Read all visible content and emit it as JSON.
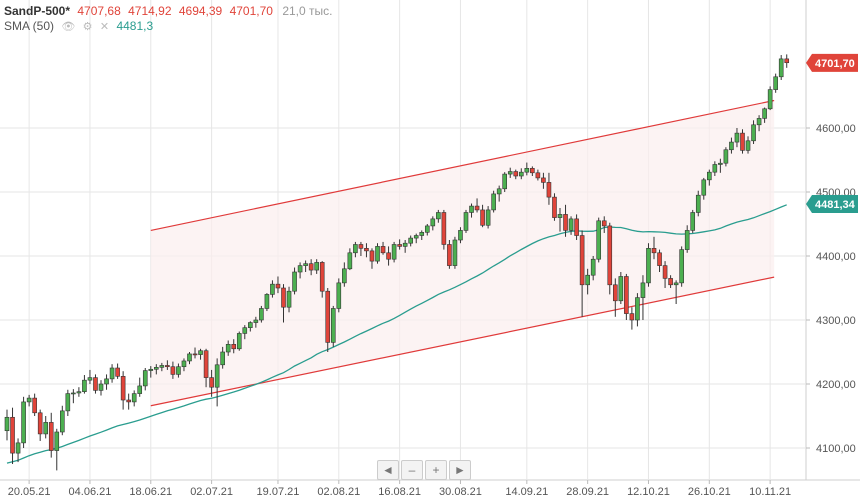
{
  "legend": {
    "symbol": "SandP-500*",
    "open": "4707,68",
    "high": "4714,92",
    "low": "4694,39",
    "close": "4701,70",
    "volume": "21,0 тыс.",
    "sma_label": "SMA (50)",
    "sma_value": "4481,3"
  },
  "nav": {
    "left": "◄",
    "minus": "–",
    "plus": "+",
    "right": "►"
  },
  "colors": {
    "up": "#4caf50",
    "down": "#e0443a",
    "channel": "#e03a3a",
    "sma": "#2a9d8f",
    "grid": "#e6e6e6"
  },
  "chart_data": {
    "type": "candlestick",
    "ylim": [
      4050,
      4800
    ],
    "yticks": [
      "4100,00",
      "4200,00",
      "4300,00",
      "4400,00",
      "4500,00",
      "4600,00"
    ],
    "xticks": [
      "20.05.21",
      "04.06.21",
      "18.06.21",
      "02.07.21",
      "19.07.21",
      "02.08.21",
      "16.08.21",
      "30.08.21",
      "14.09.21",
      "28.09.21",
      "12.10.21",
      "26.10.21",
      "10.11.21"
    ],
    "last_price": "4701,70",
    "sma_badge": "4481,34",
    "channel": {
      "start": "18.06.21",
      "end": "10.11.21",
      "upper_start": 4440,
      "upper_end": 4643,
      "lower_start": 4166,
      "lower_end": 4367
    },
    "candles": [
      [
        4127,
        4160,
        4112,
        4148
      ],
      [
        4148,
        4163,
        4075,
        4092
      ],
      [
        4092,
        4115,
        4078,
        4108
      ],
      [
        4108,
        4180,
        4100,
        4172
      ],
      [
        4172,
        4183,
        4165,
        4178
      ],
      [
        4178,
        4185,
        4150,
        4155
      ],
      [
        4155,
        4160,
        4111,
        4122
      ],
      [
        4122,
        4150,
        4115,
        4140
      ],
      [
        4140,
        4155,
        4085,
        4096
      ],
      [
        4096,
        4130,
        4065,
        4125
      ],
      [
        4125,
        4166,
        4120,
        4158
      ],
      [
        4158,
        4191,
        4150,
        4185
      ],
      [
        4185,
        4192,
        4170,
        4186
      ],
      [
        4186,
        4195,
        4180,
        4188
      ],
      [
        4188,
        4214,
        4185,
        4206
      ],
      [
        4206,
        4222,
        4200,
        4210
      ],
      [
        4210,
        4215,
        4185,
        4190
      ],
      [
        4190,
        4206,
        4182,
        4200
      ],
      [
        4200,
        4215,
        4191,
        4208
      ],
      [
        4208,
        4231,
        4202,
        4225
      ],
      [
        4225,
        4232,
        4208,
        4212
      ],
      [
        4212,
        4220,
        4160,
        4175
      ],
      [
        4175,
        4185,
        4160,
        4172
      ],
      [
        4172,
        4190,
        4165,
        4185
      ],
      [
        4185,
        4210,
        4180,
        4197
      ],
      [
        4197,
        4225,
        4190,
        4221
      ],
      [
        4221,
        4228,
        4210,
        4223
      ],
      [
        4223,
        4231,
        4215,
        4226
      ],
      [
        4226,
        4233,
        4220,
        4229
      ],
      [
        4229,
        4237,
        4222,
        4227
      ],
      [
        4227,
        4235,
        4208,
        4215
      ],
      [
        4215,
        4232,
        4210,
        4227
      ],
      [
        4227,
        4240,
        4220,
        4236
      ],
      [
        4236,
        4250,
        4231,
        4247
      ],
      [
        4247,
        4257,
        4240,
        4246
      ],
      [
        4246,
        4255,
        4238,
        4252
      ],
      [
        4252,
        4255,
        4195,
        4210
      ],
      [
        4210,
        4222,
        4180,
        4195
      ],
      [
        4195,
        4240,
        4165,
        4230
      ],
      [
        4230,
        4258,
        4224,
        4250
      ],
      [
        4250,
        4268,
        4244,
        4262
      ],
      [
        4262,
        4270,
        4248,
        4255
      ],
      [
        4255,
        4282,
        4252,
        4279
      ],
      [
        4279,
        4292,
        4270,
        4288
      ],
      [
        4288,
        4298,
        4282,
        4296
      ],
      [
        4296,
        4305,
        4288,
        4300
      ],
      [
        4300,
        4322,
        4296,
        4318
      ],
      [
        4318,
        4342,
        4314,
        4340
      ],
      [
        4340,
        4362,
        4335,
        4356
      ],
      [
        4356,
        4368,
        4342,
        4350
      ],
      [
        4350,
        4356,
        4296,
        4320
      ],
      [
        4320,
        4352,
        4312,
        4345
      ],
      [
        4345,
        4382,
        4340,
        4375
      ],
      [
        4375,
        4390,
        4365,
        4385
      ],
      [
        4385,
        4393,
        4375,
        4388
      ],
      [
        4388,
        4395,
        4370,
        4378
      ],
      [
        4378,
        4395,
        4372,
        4390
      ],
      [
        4390,
        4392,
        4335,
        4345
      ],
      [
        4345,
        4350,
        4250,
        4265
      ],
      [
        4265,
        4322,
        4258,
        4318
      ],
      [
        4318,
        4365,
        4312,
        4358
      ],
      [
        4358,
        4390,
        4352,
        4380
      ],
      [
        4380,
        4412,
        4378,
        4405
      ],
      [
        4405,
        4422,
        4398,
        4418
      ],
      [
        4418,
        4422,
        4400,
        4412
      ],
      [
        4412,
        4420,
        4398,
        4408
      ],
      [
        4408,
        4412,
        4380,
        4392
      ],
      [
        4392,
        4420,
        4388,
        4415
      ],
      [
        4415,
        4422,
        4402,
        4405
      ],
      [
        4405,
        4415,
        4385,
        4395
      ],
      [
        4395,
        4422,
        4390,
        4418
      ],
      [
        4418,
        4426,
        4410,
        4415
      ],
      [
        4415,
        4425,
        4405,
        4420
      ],
      [
        4420,
        4432,
        4415,
        4428
      ],
      [
        4428,
        4435,
        4420,
        4432
      ],
      [
        4432,
        4440,
        4425,
        4437
      ],
      [
        4437,
        4450,
        4432,
        4447
      ],
      [
        4447,
        4462,
        4440,
        4458
      ],
      [
        4458,
        4472,
        4452,
        4468
      ],
      [
        4468,
        4472,
        4410,
        4418
      ],
      [
        4418,
        4425,
        4380,
        4385
      ],
      [
        4385,
        4430,
        4380,
        4425
      ],
      [
        4425,
        4445,
        4420,
        4440
      ],
      [
        4440,
        4472,
        4436,
        4468
      ],
      [
        4468,
        4482,
        4460,
        4478
      ],
      [
        4478,
        4490,
        4468,
        4472
      ],
      [
        4472,
        4480,
        4445,
        4448
      ],
      [
        4448,
        4478,
        4443,
        4472
      ],
      [
        4472,
        4502,
        4468,
        4497
      ],
      [
        4497,
        4510,
        4485,
        4505
      ],
      [
        4505,
        4531,
        4500,
        4528
      ],
      [
        4528,
        4538,
        4522,
        4532
      ],
      [
        4532,
        4535,
        4520,
        4525
      ],
      [
        4525,
        4537,
        4520,
        4531
      ],
      [
        4531,
        4546,
        4526,
        4537
      ],
      [
        4537,
        4540,
        4525,
        4530
      ],
      [
        4530,
        4535,
        4518,
        4522
      ],
      [
        4522,
        4530,
        4505,
        4515
      ],
      [
        4515,
        4530,
        4480,
        4492
      ],
      [
        4492,
        4498,
        4455,
        4460
      ],
      [
        4460,
        4475,
        4438,
        4465
      ],
      [
        4465,
        4480,
        4430,
        4440
      ],
      [
        4440,
        4462,
        4433,
        4458
      ],
      [
        4458,
        4465,
        4425,
        4432
      ],
      [
        4432,
        4440,
        4305,
        4355
      ],
      [
        4355,
        4380,
        4340,
        4370
      ],
      [
        4370,
        4400,
        4362,
        4395
      ],
      [
        4395,
        4460,
        4390,
        4455
      ],
      [
        4455,
        4462,
        4436,
        4447
      ],
      [
        4447,
        4452,
        4340,
        4355
      ],
      [
        4355,
        4365,
        4305,
        4330
      ],
      [
        4330,
        4375,
        4325,
        4368
      ],
      [
        4368,
        4372,
        4300,
        4310
      ],
      [
        4310,
        4320,
        4285,
        4300
      ],
      [
        4300,
        4342,
        4290,
        4335
      ],
      [
        4335,
        4370,
        4300,
        4358
      ],
      [
        4358,
        4420,
        4352,
        4412
      ],
      [
        4412,
        4430,
        4395,
        4405
      ],
      [
        4405,
        4410,
        4375,
        4385
      ],
      [
        4385,
        4392,
        4350,
        4365
      ],
      [
        4365,
        4370,
        4350,
        4355
      ],
      [
        4355,
        4362,
        4325,
        4358
      ],
      [
        4358,
        4415,
        4352,
        4410
      ],
      [
        4410,
        4448,
        4405,
        4440
      ],
      [
        4440,
        4472,
        4436,
        4468
      ],
      [
        4468,
        4502,
        4462,
        4495
      ],
      [
        4495,
        4522,
        4488,
        4519
      ],
      [
        4519,
        4535,
        4510,
        4531
      ],
      [
        4531,
        4548,
        4525,
        4543
      ],
      [
        4543,
        4552,
        4530,
        4545
      ],
      [
        4545,
        4570,
        4540,
        4566
      ],
      [
        4566,
        4585,
        4560,
        4578
      ],
      [
        4578,
        4600,
        4570,
        4592
      ],
      [
        4592,
        4598,
        4560,
        4565
      ],
      [
        4565,
        4587,
        4560,
        4580
      ],
      [
        4580,
        4612,
        4575,
        4605
      ],
      [
        4605,
        4620,
        4595,
        4615
      ],
      [
        4615,
        4632,
        4608,
        4630
      ],
      [
        4630,
        4665,
        4628,
        4660
      ],
      [
        4660,
        4685,
        4655,
        4680
      ],
      [
        4680,
        4714,
        4675,
        4708
      ],
      [
        4708,
        4715,
        4694,
        4702
      ]
    ]
  }
}
